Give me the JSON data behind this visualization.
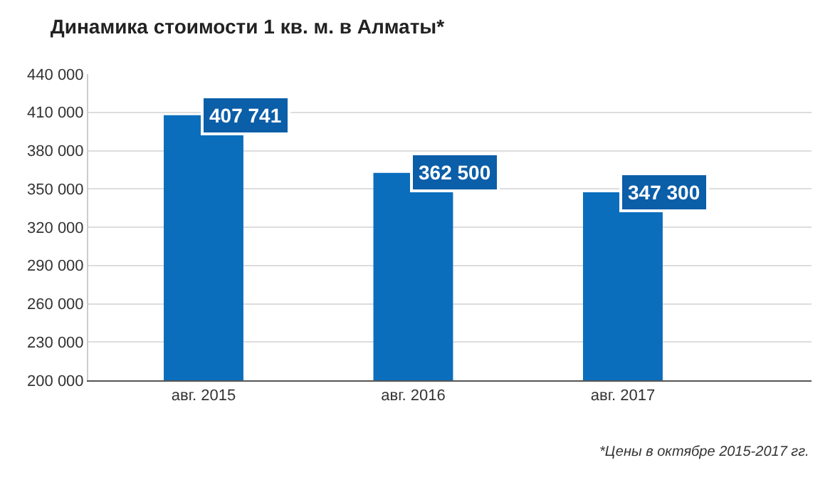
{
  "chart_data": {
    "type": "bar",
    "title": "Динамика стоимости 1 кв. м. в Алматы*",
    "categories": [
      "авг. 2015",
      "авг. 2016",
      "авг. 2017"
    ],
    "values": [
      407741,
      362500,
      347300
    ],
    "value_labels": [
      "407 741",
      "362 500",
      "347 300"
    ],
    "color": "#0a6ebd",
    "ylim": [
      200000,
      440000
    ],
    "yticks": [
      {
        "value": 200000,
        "label": "200 000"
      },
      {
        "value": 230000,
        "label": "230 000"
      },
      {
        "value": 260000,
        "label": "260 000"
      },
      {
        "value": 290000,
        "label": "290 000"
      },
      {
        "value": 320000,
        "label": "320 000"
      },
      {
        "value": 350000,
        "label": "350 000"
      },
      {
        "value": 380000,
        "label": "380 000"
      },
      {
        "value": 410000,
        "label": "410 000"
      },
      {
        "value": 440000,
        "label": "440 000"
      }
    ],
    "grid": "y",
    "annotations": [
      "*Цены в октябре 2015-2017 гг."
    ]
  }
}
